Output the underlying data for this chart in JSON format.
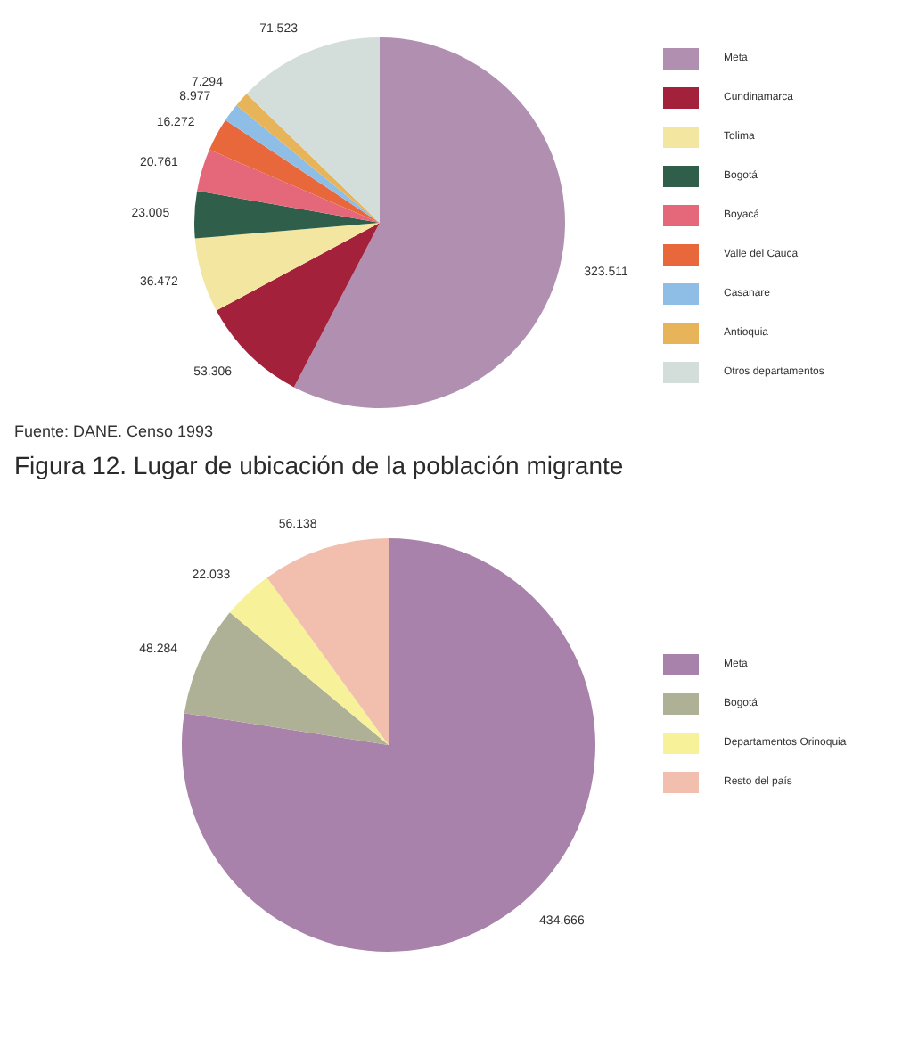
{
  "chart_data": [
    {
      "type": "pie",
      "categories": [
        "Meta",
        "Cundinamarca",
        "Tolima",
        "Bogotá",
        "Boyacá",
        "Valle del Cauca",
        "Casanare",
        "Antioquia",
        "Otros departamentos"
      ],
      "values": [
        323511,
        53306,
        36472,
        23005,
        20761,
        16272,
        8977,
        7294,
        71523
      ],
      "value_labels": [
        "323.511",
        "53.306",
        "36.472",
        "23.005",
        "20.761",
        "16.272",
        "8.977",
        "7.294",
        "71.523"
      ],
      "colors": [
        "#b08fb0",
        "#a3213b",
        "#f3e6a0",
        "#2f5e4a",
        "#e5687a",
        "#e8683c",
        "#8ebde6",
        "#e8b45a",
        "#d3dedb"
      ],
      "legend": "right",
      "annotations": [
        "Fuente: DANE. Censo 1993"
      ]
    },
    {
      "type": "pie",
      "title": "Figura 12. Lugar de ubicación de la población migrante",
      "categories": [
        "Meta",
        "Bogotá",
        "Departamentos Orinoquia",
        "Resto del país"
      ],
      "values": [
        434666,
        48284,
        22033,
        56138
      ],
      "value_labels": [
        "434.666",
        "48.284",
        "22.033",
        "56.138"
      ],
      "colors": [
        "#a982ab",
        "#aeb195",
        "#f7f19a",
        "#f2bfae"
      ],
      "legend": "right"
    }
  ]
}
